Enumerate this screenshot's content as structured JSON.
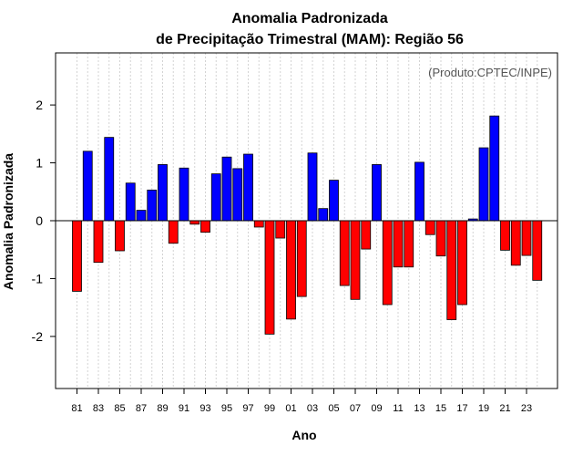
{
  "chart_data": {
    "type": "bar",
    "title_line1": "Anomalia Padronizada",
    "title_line2": "de Precipitação Trimestral (MAM): Região 56",
    "xlabel": "Ano",
    "ylabel": "Anomalia Padronizada",
    "credit": "(Produto:CPTEC/INPE)",
    "ylim": [
      -2.9,
      2.9
    ],
    "yticks": [
      -2,
      -1,
      0,
      1,
      2
    ],
    "ytick_labels": [
      "-2",
      "-1",
      "0",
      "1",
      "2"
    ],
    "positive_color": "#0000ff",
    "negative_color": "#ff0000",
    "categories": [
      "81",
      "82",
      "83",
      "84",
      "85",
      "86",
      "87",
      "88",
      "89",
      "90",
      "91",
      "92",
      "93",
      "94",
      "95",
      "96",
      "97",
      "98",
      "99",
      "00",
      "01",
      "02",
      "03",
      "04",
      "05",
      "06",
      "07",
      "08",
      "09",
      "10",
      "11",
      "12",
      "13",
      "14",
      "15",
      "16",
      "17",
      "18",
      "19",
      "20",
      "21",
      "22",
      "23",
      "24"
    ],
    "xtick_labels": [
      "81",
      "83",
      "85",
      "87",
      "89",
      "91",
      "93",
      "95",
      "97",
      "99",
      "01",
      "03",
      "05",
      "07",
      "09",
      "11",
      "13",
      "15",
      "17",
      "19",
      "21",
      "23"
    ],
    "values": [
      -1.22,
      1.2,
      -0.72,
      1.44,
      -0.52,
      0.65,
      0.18,
      0.53,
      0.97,
      -0.39,
      0.91,
      -0.06,
      -0.2,
      0.81,
      1.1,
      0.9,
      1.15,
      -0.11,
      -1.96,
      -0.3,
      -1.7,
      -1.31,
      1.17,
      0.21,
      0.7,
      -1.12,
      -1.36,
      -0.49,
      0.97,
      -1.45,
      -0.8,
      -0.8,
      1.01,
      -0.24,
      -0.61,
      -1.71,
      -1.45,
      0.03,
      1.26,
      1.81,
      -0.51,
      -0.77,
      -0.6,
      -1.03
    ]
  }
}
